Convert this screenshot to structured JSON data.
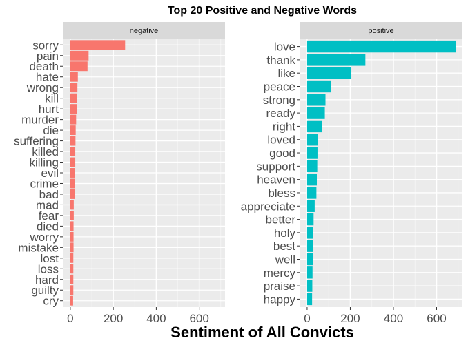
{
  "chart_data": {
    "type": "bar",
    "orientation": "horizontal",
    "title": "Top 20 Positive and Negative Words",
    "xlabel": "Sentiment of All Convicts",
    "ylabel": "",
    "xlim": [
      0,
      700
    ],
    "xticks": [
      "0",
      "200",
      "400",
      "600"
    ],
    "grid": true,
    "panels": [
      {
        "name": "negative",
        "color": "#F8766D",
        "categories": [
          "sorry",
          "pain",
          "death",
          "hate",
          "wrong",
          "kill",
          "hurt",
          "murder",
          "die",
          "suffering",
          "killed",
          "killing",
          "evil",
          "crime",
          "bad",
          "mad",
          "fear",
          "died",
          "worry",
          "mistake",
          "lost",
          "loss",
          "hard",
          "guilty",
          "cry"
        ],
        "values": [
          255,
          85,
          80,
          35,
          33,
          32,
          30,
          27,
          25,
          24,
          23,
          23,
          22,
          21,
          20,
          16,
          16,
          15,
          15,
          15,
          14,
          14,
          14,
          14,
          13
        ]
      },
      {
        "name": "positive",
        "color": "#00BFC4",
        "categories": [
          "love",
          "thank",
          "like",
          "peace",
          "strong",
          "ready",
          "right",
          "loved",
          "good",
          "support",
          "heaven",
          "bless",
          "appreciate",
          "better",
          "holy",
          "best",
          "well",
          "mercy",
          "praise",
          "happy"
        ],
        "values": [
          690,
          270,
          205,
          110,
          85,
          82,
          70,
          50,
          48,
          47,
          45,
          43,
          35,
          30,
          28,
          27,
          26,
          25,
          24,
          23
        ]
      }
    ]
  }
}
